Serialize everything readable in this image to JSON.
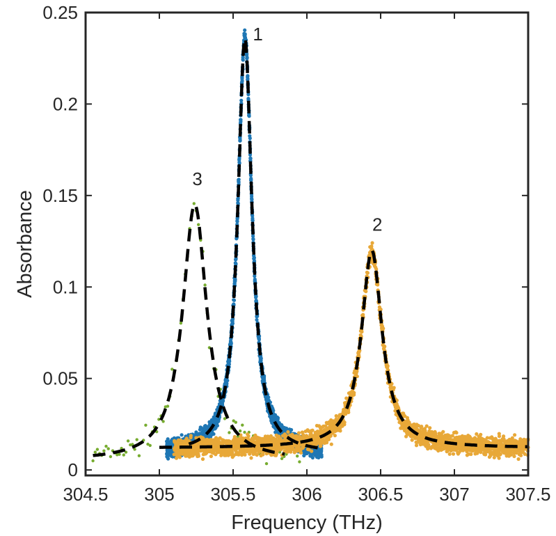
{
  "chart_data": {
    "type": "scatter",
    "title": "",
    "xlabel": "Frequency (THz)",
    "ylabel": "Absorbance",
    "xlim": [
      304.5,
      307.5
    ],
    "ylim": [
      -0.003,
      0.25
    ],
    "grid": false,
    "box": true,
    "x_ticks": [
      304.5,
      305,
      305.5,
      306,
      306.5,
      307,
      307.5
    ],
    "x_tick_labels": [
      "304.5",
      "305",
      "305.5",
      "306",
      "306.5",
      "307",
      "307.5"
    ],
    "y_ticks": [
      0,
      0.05,
      0.1,
      0.15,
      0.2,
      0.25
    ],
    "y_tick_labels": [
      "0",
      "0.05",
      "0.1",
      "0.15",
      "0.2",
      "0.25"
    ],
    "series": [
      {
        "label": "1",
        "color": "#1f77b4",
        "style": "dense-points",
        "x0": 305.58,
        "amplitude": 0.227,
        "hwhm": 0.058,
        "baseline": 0.009,
        "x_range": [
          305.05,
          306.1
        ],
        "noise": 0.003,
        "label_at": [
          305.63,
          0.237
        ]
      },
      {
        "label": "2",
        "color": "#e8a838",
        "style": "dense-points",
        "x0": 306.44,
        "amplitude": 0.108,
        "hwhm": 0.085,
        "baseline": 0.012,
        "x_range": [
          305.1,
          307.5
        ],
        "noise": 0.0035,
        "label_at": [
          306.44,
          0.133
        ]
      },
      {
        "label": "3",
        "color": "#77ac30",
        "style": "sparse-dots",
        "x0": 305.24,
        "amplitude": 0.14,
        "hwhm": 0.1,
        "baseline": 0.005,
        "x_range": [
          304.55,
          305.95
        ],
        "noise": 0.004,
        "label_at": [
          305.22,
          0.158
        ]
      }
    ],
    "fits": [
      {
        "of": "1",
        "color": "#000000",
        "style": "dashed",
        "x0": 305.58,
        "amplitude": 0.227,
        "hwhm": 0.058,
        "baseline": 0.009,
        "x_range": [
          305.2,
          306.1
        ]
      },
      {
        "of": "2",
        "color": "#000000",
        "style": "dashed",
        "x0": 306.44,
        "amplitude": 0.108,
        "hwhm": 0.085,
        "baseline": 0.012,
        "x_range": [
          305.0,
          307.5
        ]
      },
      {
        "of": "3",
        "color": "#000000",
        "style": "dashed",
        "x0": 305.24,
        "amplitude": 0.14,
        "hwhm": 0.1,
        "baseline": 0.005,
        "x_range": [
          304.55,
          305.85
        ]
      }
    ]
  }
}
